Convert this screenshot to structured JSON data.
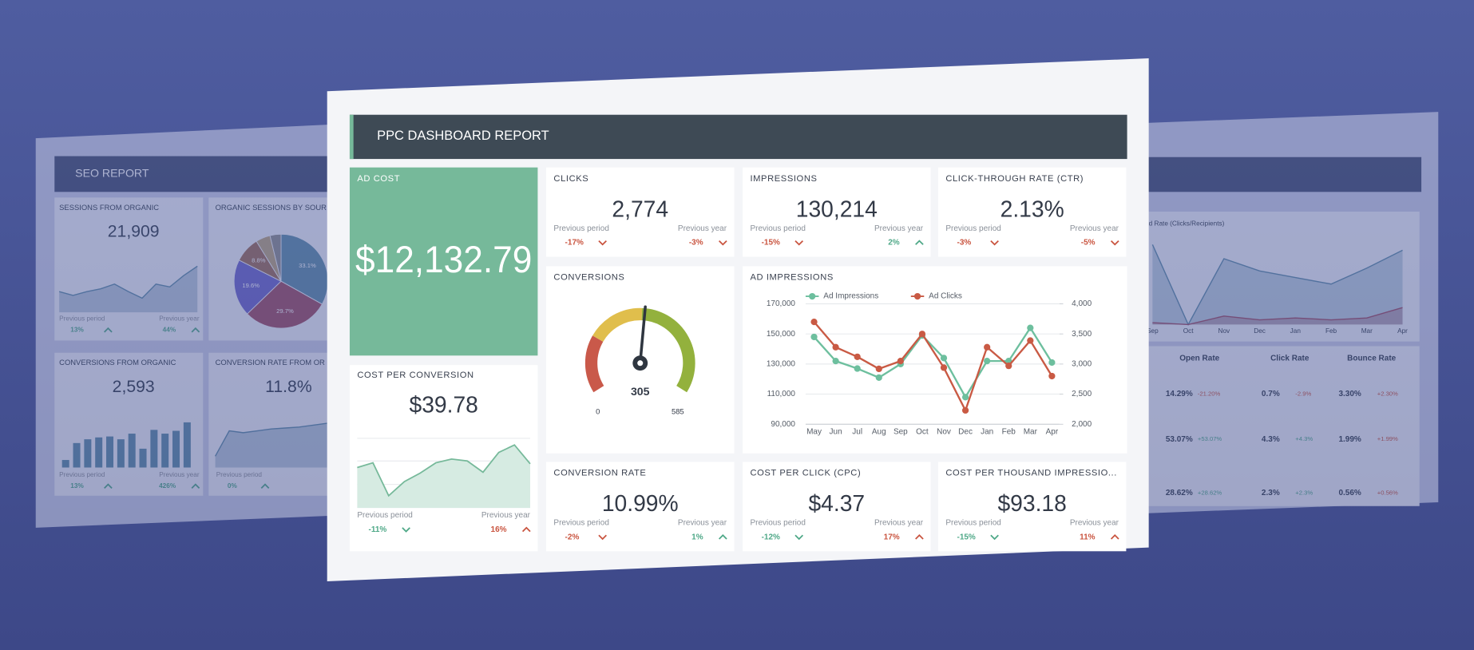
{
  "main": {
    "title": "PPC DASHBOARD REPORT",
    "ad_cost": {
      "label": "AD COST",
      "value": "$12,132.79"
    },
    "kpis": [
      {
        "label": "CLICKS",
        "value": "2,774",
        "period_label": "Previous period",
        "period_change": {
          "text": "-17%",
          "color": "#c9543f"
        },
        "year_label": "Previous year",
        "year_change": {
          "text": "-3%",
          "color": "#c9543f"
        }
      },
      {
        "label": "IMPRESSIONS",
        "value": "130,214",
        "period_label": "Previous period",
        "period_change": {
          "text": "-15%",
          "color": "#c9543f"
        },
        "year_label": "Previous year",
        "year_change": {
          "text": "2%",
          "color": "#4ea887"
        }
      },
      {
        "label": "CLICK-THROUGH RATE (CTR)",
        "value": "2.13%",
        "period_label": "Previous period",
        "period_change": {
          "text": "-3%",
          "color": "#c9543f"
        },
        "year_label": "Previous year",
        "year_change": {
          "text": "-5%",
          "color": "#c9543f"
        }
      },
      {
        "label": "CONVERSION RATE",
        "value": "10.99%",
        "period_label": "Previous period",
        "period_change": {
          "text": "-2%",
          "color": "#c9543f"
        },
        "year_label": "Previous year",
        "year_change": {
          "text": "1%",
          "color": "#4ea887"
        }
      },
      {
        "label": "COST PER CLICK (CPC)",
        "value": "$4.37",
        "period_label": "Previous period",
        "period_change": {
          "text": "-12%",
          "color": "#4ea887"
        },
        "year_label": "Previous year",
        "year_change": {
          "text": "17%",
          "color": "#c9543f"
        }
      },
      {
        "label": "COST PER THOUSAND IMPRESSIO...",
        "value": "$93.18",
        "period_label": "Previous period",
        "period_change": {
          "text": "-15%",
          "color": "#4ea887"
        },
        "year_label": "Previous year",
        "year_change": {
          "text": "11%",
          "color": "#c9543f"
        }
      }
    ],
    "cost_per_conversion": {
      "label": "COST PER CONVERSION",
      "value": "$39.78",
      "sparkline": [
        43,
        48,
        13,
        28,
        37,
        48,
        52,
        50,
        38,
        59,
        67,
        47
      ],
      "period_label": "Previous period",
      "period_change": {
        "text": "-11%",
        "color": "#4ea887"
      },
      "year_label": "Previous year",
      "year_change": {
        "text": "16%",
        "color": "#c9543f"
      }
    },
    "conversions": {
      "label": "CONVERSIONS",
      "value": 305,
      "min": 0,
      "max": 585
    },
    "ad_impressions": {
      "type": "line",
      "title": "AD IMPRESSIONS",
      "categories": [
        "May",
        "Jun",
        "Jul",
        "Aug",
        "Sep",
        "Oct",
        "Nov",
        "Dec",
        "Jan",
        "Feb",
        "Mar",
        "Apr"
      ],
      "series": [
        {
          "name": "Ad Impressions",
          "color": "#6dbf9e",
          "values": [
            148000,
            132000,
            127000,
            121000,
            130000,
            149000,
            134000,
            108000,
            132000,
            132000,
            154000,
            131000
          ]
        },
        {
          "name": "Ad Clicks",
          "color": "#c95a44",
          "axis": "y2",
          "values": [
            3700,
            3280,
            3120,
            2920,
            3050,
            3500,
            2940,
            2230,
            3280,
            2970,
            3390,
            2800
          ]
        }
      ],
      "ylim": [
        90000,
        170000
      ],
      "yticks": [
        {
          "value": 90000,
          "label": "90,000"
        },
        {
          "value": 110000,
          "label": "110,000"
        },
        {
          "value": 130000,
          "label": "130,000"
        },
        {
          "value": 150000,
          "label": "150,000"
        },
        {
          "value": 170000,
          "label": "170,000"
        }
      ],
      "y2lim": [
        2000,
        4000
      ],
      "y2ticks": [
        {
          "value": 2000,
          "label": "2,000"
        },
        {
          "value": 2500,
          "label": "2,500"
        },
        {
          "value": 3000,
          "label": "3,000"
        },
        {
          "value": 3500,
          "label": "3,500"
        },
        {
          "value": 4000,
          "label": "4,000"
        }
      ],
      "grid": true,
      "legend": "top"
    }
  },
  "seo": {
    "title": "SEO REPORT",
    "sessions": {
      "label": "SESSIONS FROM ORGANIC",
      "value": "21,909",
      "sparkline": [
        22,
        18,
        22,
        25,
        30,
        22,
        15,
        30,
        27,
        39,
        49
      ],
      "period_label": "Previous period",
      "period_change": {
        "text": "13%",
        "color": "#4ea887"
      },
      "year_label": "Previous year",
      "year_change": {
        "text": "44%",
        "color": "#4ea887"
      }
    },
    "pie": {
      "label": "ORGANIC SESSIONS BY SOUR",
      "values": [
        33.1,
        29.7,
        19.6,
        8.8,
        5,
        3.8
      ],
      "value_labels": [
        "33.1%",
        "29.7%",
        "19.6%",
        "8.8%",
        null,
        null
      ],
      "colors": [
        "#5b8aa6",
        "#9c4a62",
        "#6a63c9",
        "#9a6a55",
        "#b8a27a",
        "#8c8c8c"
      ]
    },
    "conversions": {
      "label": "CONVERSIONS FROM ORGANIC",
      "value": "2,593",
      "bars": [
        8,
        26,
        30,
        32,
        33,
        30,
        36,
        20,
        40,
        36,
        39,
        48
      ],
      "period_label": "Previous period",
      "period_change": {
        "text": "13%",
        "color": "#4ea887"
      },
      "year_label": "Previous year",
      "year_change": {
        "text": "426%",
        "color": "#4ea887"
      }
    },
    "conversion_rate": {
      "label": "CONVERSION RATE FROM OR",
      "value": "11.8%",
      "sparkline": [
        12,
        39,
        37,
        39,
        41,
        42,
        43,
        45,
        47
      ],
      "period_label": "Previous period",
      "period_change": {
        "text": "0%",
        "color": "#4ea887"
      }
    }
  },
  "email": {
    "chart_label": "d Rate (Clicks/Recipients)",
    "months": [
      "Sep",
      "Oct",
      "Nov",
      "Dec",
      "Jan",
      "Feb",
      "Mar",
      "Apr"
    ],
    "series": [
      {
        "color": "#5b8aa6",
        "values": [
          85,
          0,
          70,
          57,
          50,
          43,
          60,
          79
        ]
      },
      {
        "color": "#9c4a62",
        "values": [
          2,
          0,
          9,
          5,
          7,
          5,
          7,
          18
        ]
      }
    ],
    "table": {
      "headers": [
        "Open Rate",
        "Click Rate",
        "Bounce Rate"
      ],
      "rows": [
        [
          {
            "text": "14.29%",
            "color": "#2f3a4a"
          },
          {
            "text": "-21.20%",
            "color": "#c9543f"
          },
          {
            "text": "0.7%",
            "color": "#2f3a4a"
          },
          {
            "text": "-2.9%",
            "color": "#c9543f"
          },
          {
            "text": "3.30%",
            "color": "#2f3a4a"
          },
          {
            "text": "+2.30%",
            "color": "#c9543f"
          }
        ],
        [
          {
            "text": "53.07%",
            "color": "#2f3a4a"
          },
          {
            "text": "+53.07%",
            "color": "#4ea887"
          },
          {
            "text": "4.3%",
            "color": "#2f3a4a"
          },
          {
            "text": "+4.3%",
            "color": "#4ea887"
          },
          {
            "text": "1.99%",
            "color": "#2f3a4a"
          },
          {
            "text": "+1.99%",
            "color": "#c9543f"
          }
        ],
        [
          {
            "text": "28.62%",
            "color": "#2f3a4a"
          },
          {
            "text": "+28.62%",
            "color": "#4ea887"
          },
          {
            "text": "2.3%",
            "color": "#2f3a4a"
          },
          {
            "text": "+2.3%",
            "color": "#4ea887"
          },
          {
            "text": "0.56%",
            "color": "#2f3a4a"
          },
          {
            "text": "+0.56%",
            "color": "#c9543f"
          }
        ]
      ]
    }
  }
}
